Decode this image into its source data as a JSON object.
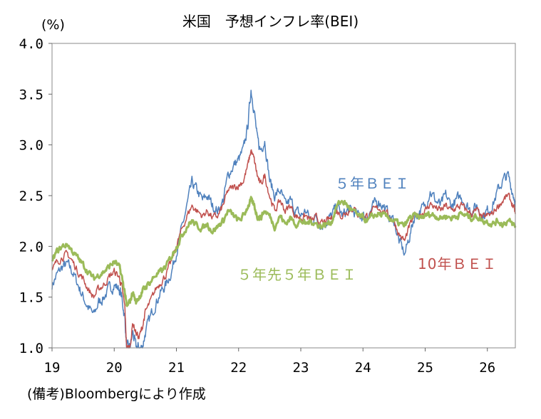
{
  "chart_data": {
    "type": "line",
    "title": "米国　予想インフレ率(BEI)",
    "ylabel": "(%)",
    "ylim": [
      1.0,
      4.0
    ],
    "y_ticks": [
      "1.0",
      "1.5",
      "2.0",
      "2.5",
      "3.0",
      "3.5",
      "4.0"
    ],
    "xlim": [
      2019.0,
      2026.45
    ],
    "x_ticks": [
      {
        "label": "19",
        "value": 2019
      },
      {
        "label": "20",
        "value": 2020
      },
      {
        "label": "21",
        "value": 2021
      },
      {
        "label": "22",
        "value": 2022
      },
      {
        "label": "23",
        "value": 2023
      },
      {
        "label": "24",
        "value": 2024
      },
      {
        "label": "25",
        "value": 2025
      },
      {
        "label": "26",
        "value": 2026
      }
    ],
    "grid": false,
    "source": "(備考)Bloombergにより作成",
    "series": [
      {
        "name": "５年ＢＥＩ",
        "color": "#4F81BD",
        "points": [
          [
            2019.0,
            1.62
          ],
          [
            2019.08,
            1.72
          ],
          [
            2019.17,
            1.8
          ],
          [
            2019.25,
            1.82
          ],
          [
            2019.33,
            1.75
          ],
          [
            2019.42,
            1.62
          ],
          [
            2019.5,
            1.5
          ],
          [
            2019.58,
            1.4
          ],
          [
            2019.67,
            1.32
          ],
          [
            2019.75,
            1.45
          ],
          [
            2019.83,
            1.5
          ],
          [
            2019.92,
            1.58
          ],
          [
            2020.0,
            1.62
          ],
          [
            2020.08,
            1.58
          ],
          [
            2020.12,
            1.5
          ],
          [
            2020.17,
            1.3
          ],
          [
            2020.2,
            1.0
          ],
          [
            2020.25,
            1.0
          ],
          [
            2020.3,
            1.15
          ],
          [
            2020.35,
            1.0
          ],
          [
            2020.4,
            1.0
          ],
          [
            2020.45,
            1.0
          ],
          [
            2020.5,
            1.15
          ],
          [
            2020.58,
            1.3
          ],
          [
            2020.67,
            1.45
          ],
          [
            2020.75,
            1.55
          ],
          [
            2020.83,
            1.62
          ],
          [
            2020.92,
            1.75
          ],
          [
            2021.0,
            1.95
          ],
          [
            2021.08,
            2.15
          ],
          [
            2021.17,
            2.4
          ],
          [
            2021.25,
            2.62
          ],
          [
            2021.33,
            2.55
          ],
          [
            2021.42,
            2.45
          ],
          [
            2021.5,
            2.5
          ],
          [
            2021.58,
            2.4
          ],
          [
            2021.67,
            2.35
          ],
          [
            2021.75,
            2.45
          ],
          [
            2021.83,
            2.7
          ],
          [
            2021.92,
            2.8
          ],
          [
            2022.0,
            2.85
          ],
          [
            2022.08,
            2.95
          ],
          [
            2022.15,
            3.2
          ],
          [
            2022.2,
            3.55
          ],
          [
            2022.25,
            3.35
          ],
          [
            2022.3,
            3.05
          ],
          [
            2022.35,
            2.95
          ],
          [
            2022.42,
            3.05
          ],
          [
            2022.5,
            2.65
          ],
          [
            2022.58,
            2.5
          ],
          [
            2022.67,
            2.55
          ],
          [
            2022.75,
            2.4
          ],
          [
            2022.83,
            2.45
          ],
          [
            2022.92,
            2.35
          ],
          [
            2023.0,
            2.3
          ],
          [
            2023.08,
            2.35
          ],
          [
            2023.17,
            2.25
          ],
          [
            2023.25,
            2.3
          ],
          [
            2023.33,
            2.2
          ],
          [
            2023.42,
            2.25
          ],
          [
            2023.5,
            2.3
          ],
          [
            2023.58,
            2.4
          ],
          [
            2023.67,
            2.3
          ],
          [
            2023.75,
            2.35
          ],
          [
            2023.83,
            2.35
          ],
          [
            2023.92,
            2.3
          ],
          [
            2024.0,
            2.3
          ],
          [
            2024.08,
            2.3
          ],
          [
            2024.17,
            2.4
          ],
          [
            2024.25,
            2.45
          ],
          [
            2024.33,
            2.4
          ],
          [
            2024.42,
            2.3
          ],
          [
            2024.5,
            2.25
          ],
          [
            2024.58,
            2.05
          ],
          [
            2024.67,
            1.92
          ],
          [
            2024.75,
            2.1
          ],
          [
            2024.83,
            2.3
          ],
          [
            2024.92,
            2.35
          ],
          [
            2025.0,
            2.4
          ],
          [
            2025.08,
            2.55
          ],
          [
            2025.17,
            2.45
          ],
          [
            2025.25,
            2.4
          ],
          [
            2025.33,
            2.5
          ],
          [
            2025.42,
            2.4
          ],
          [
            2025.5,
            2.45
          ],
          [
            2025.58,
            2.5
          ],
          [
            2025.67,
            2.4
          ],
          [
            2025.75,
            2.35
          ],
          [
            2025.83,
            2.4
          ],
          [
            2025.92,
            2.3
          ],
          [
            2026.0,
            2.35
          ],
          [
            2026.08,
            2.4
          ],
          [
            2026.17,
            2.55
          ],
          [
            2026.25,
            2.65
          ],
          [
            2026.33,
            2.7
          ],
          [
            2026.4,
            2.55
          ],
          [
            2026.45,
            2.45
          ]
        ]
      },
      {
        "name": "10年ＢＥＩ",
        "color": "#C0504D",
        "points": [
          [
            2019.0,
            1.75
          ],
          [
            2019.08,
            1.85
          ],
          [
            2019.17,
            1.9
          ],
          [
            2019.25,
            1.92
          ],
          [
            2019.33,
            1.85
          ],
          [
            2019.42,
            1.75
          ],
          [
            2019.5,
            1.68
          ],
          [
            2019.58,
            1.58
          ],
          [
            2019.67,
            1.5
          ],
          [
            2019.75,
            1.58
          ],
          [
            2019.83,
            1.62
          ],
          [
            2019.92,
            1.7
          ],
          [
            2020.0,
            1.75
          ],
          [
            2020.08,
            1.7
          ],
          [
            2020.12,
            1.6
          ],
          [
            2020.17,
            1.4
          ],
          [
            2020.2,
            1.0
          ],
          [
            2020.25,
            1.0
          ],
          [
            2020.3,
            1.25
          ],
          [
            2020.35,
            1.15
          ],
          [
            2020.4,
            1.1
          ],
          [
            2020.45,
            1.2
          ],
          [
            2020.5,
            1.35
          ],
          [
            2020.58,
            1.45
          ],
          [
            2020.67,
            1.58
          ],
          [
            2020.75,
            1.65
          ],
          [
            2020.83,
            1.72
          ],
          [
            2020.92,
            1.85
          ],
          [
            2021.0,
            2.0
          ],
          [
            2021.08,
            2.15
          ],
          [
            2021.17,
            2.3
          ],
          [
            2021.25,
            2.4
          ],
          [
            2021.33,
            2.35
          ],
          [
            2021.42,
            2.3
          ],
          [
            2021.5,
            2.35
          ],
          [
            2021.58,
            2.28
          ],
          [
            2021.67,
            2.3
          ],
          [
            2021.75,
            2.4
          ],
          [
            2021.83,
            2.55
          ],
          [
            2021.92,
            2.58
          ],
          [
            2022.0,
            2.6
          ],
          [
            2022.08,
            2.65
          ],
          [
            2022.15,
            2.8
          ],
          [
            2022.2,
            2.95
          ],
          [
            2022.25,
            2.85
          ],
          [
            2022.3,
            2.7
          ],
          [
            2022.35,
            2.6
          ],
          [
            2022.42,
            2.7
          ],
          [
            2022.5,
            2.5
          ],
          [
            2022.58,
            2.35
          ],
          [
            2022.67,
            2.45
          ],
          [
            2022.75,
            2.35
          ],
          [
            2022.83,
            2.4
          ],
          [
            2022.92,
            2.3
          ],
          [
            2023.0,
            2.28
          ],
          [
            2023.08,
            2.3
          ],
          [
            2023.17,
            2.25
          ],
          [
            2023.25,
            2.28
          ],
          [
            2023.33,
            2.22
          ],
          [
            2023.42,
            2.25
          ],
          [
            2023.5,
            2.28
          ],
          [
            2023.58,
            2.35
          ],
          [
            2023.67,
            2.3
          ],
          [
            2023.75,
            2.35
          ],
          [
            2023.83,
            2.38
          ],
          [
            2023.92,
            2.32
          ],
          [
            2024.0,
            2.3
          ],
          [
            2024.08,
            2.3
          ],
          [
            2024.17,
            2.35
          ],
          [
            2024.25,
            2.38
          ],
          [
            2024.33,
            2.35
          ],
          [
            2024.42,
            2.3
          ],
          [
            2024.5,
            2.25
          ],
          [
            2024.58,
            2.12
          ],
          [
            2024.67,
            2.05
          ],
          [
            2024.75,
            2.2
          ],
          [
            2024.83,
            2.3
          ],
          [
            2024.92,
            2.32
          ],
          [
            2025.0,
            2.35
          ],
          [
            2025.08,
            2.42
          ],
          [
            2025.17,
            2.38
          ],
          [
            2025.25,
            2.35
          ],
          [
            2025.33,
            2.4
          ],
          [
            2025.42,
            2.35
          ],
          [
            2025.5,
            2.38
          ],
          [
            2025.58,
            2.4
          ],
          [
            2025.67,
            2.35
          ],
          [
            2025.75,
            2.32
          ],
          [
            2025.83,
            2.35
          ],
          [
            2025.92,
            2.28
          ],
          [
            2026.0,
            2.3
          ],
          [
            2026.08,
            2.32
          ],
          [
            2026.17,
            2.4
          ],
          [
            2026.25,
            2.45
          ],
          [
            2026.33,
            2.5
          ],
          [
            2026.4,
            2.42
          ],
          [
            2026.45,
            2.32
          ]
        ]
      },
      {
        "name": "５年先５年ＢＥＩ",
        "color": "#9BBB59",
        "points": [
          [
            2019.0,
            1.85
          ],
          [
            2019.08,
            1.95
          ],
          [
            2019.17,
            2.0
          ],
          [
            2019.25,
            2.02
          ],
          [
            2019.33,
            1.95
          ],
          [
            2019.42,
            1.88
          ],
          [
            2019.5,
            1.82
          ],
          [
            2019.58,
            1.75
          ],
          [
            2019.67,
            1.68
          ],
          [
            2019.75,
            1.72
          ],
          [
            2019.83,
            1.75
          ],
          [
            2019.92,
            1.8
          ],
          [
            2020.0,
            1.85
          ],
          [
            2020.08,
            1.8
          ],
          [
            2020.12,
            1.7
          ],
          [
            2020.17,
            1.55
          ],
          [
            2020.2,
            1.4
          ],
          [
            2020.25,
            1.45
          ],
          [
            2020.3,
            1.55
          ],
          [
            2020.35,
            1.45
          ],
          [
            2020.4,
            1.5
          ],
          [
            2020.45,
            1.55
          ],
          [
            2020.5,
            1.6
          ],
          [
            2020.58,
            1.65
          ],
          [
            2020.67,
            1.72
          ],
          [
            2020.75,
            1.75
          ],
          [
            2020.83,
            1.8
          ],
          [
            2020.92,
            1.9
          ],
          [
            2021.0,
            2.0
          ],
          [
            2021.08,
            2.1
          ],
          [
            2021.17,
            2.2
          ],
          [
            2021.25,
            2.25
          ],
          [
            2021.33,
            2.2
          ],
          [
            2021.42,
            2.18
          ],
          [
            2021.5,
            2.22
          ],
          [
            2021.58,
            2.15
          ],
          [
            2021.67,
            2.2
          ],
          [
            2021.75,
            2.25
          ],
          [
            2021.83,
            2.35
          ],
          [
            2021.92,
            2.3
          ],
          [
            2022.0,
            2.25
          ],
          [
            2022.08,
            2.3
          ],
          [
            2022.15,
            2.4
          ],
          [
            2022.2,
            2.45
          ],
          [
            2022.25,
            2.4
          ],
          [
            2022.3,
            2.3
          ],
          [
            2022.35,
            2.28
          ],
          [
            2022.42,
            2.35
          ],
          [
            2022.5,
            2.3
          ],
          [
            2022.58,
            2.2
          ],
          [
            2022.67,
            2.3
          ],
          [
            2022.75,
            2.22
          ],
          [
            2022.83,
            2.28
          ],
          [
            2022.92,
            2.22
          ],
          [
            2023.0,
            2.25
          ],
          [
            2023.08,
            2.22
          ],
          [
            2023.17,
            2.25
          ],
          [
            2023.25,
            2.22
          ],
          [
            2023.33,
            2.2
          ],
          [
            2023.42,
            2.22
          ],
          [
            2023.5,
            2.25
          ],
          [
            2023.58,
            2.4
          ],
          [
            2023.67,
            2.45
          ],
          [
            2023.75,
            2.4
          ],
          [
            2023.83,
            2.35
          ],
          [
            2023.92,
            2.3
          ],
          [
            2024.0,
            2.28
          ],
          [
            2024.08,
            2.25
          ],
          [
            2024.17,
            2.3
          ],
          [
            2024.25,
            2.32
          ],
          [
            2024.33,
            2.3
          ],
          [
            2024.42,
            2.28
          ],
          [
            2024.5,
            2.25
          ],
          [
            2024.58,
            2.22
          ],
          [
            2024.67,
            2.2
          ],
          [
            2024.75,
            2.28
          ],
          [
            2024.83,
            2.3
          ],
          [
            2024.92,
            2.28
          ],
          [
            2025.0,
            2.3
          ],
          [
            2025.08,
            2.32
          ],
          [
            2025.17,
            2.3
          ],
          [
            2025.25,
            2.28
          ],
          [
            2025.33,
            2.3
          ],
          [
            2025.42,
            2.28
          ],
          [
            2025.5,
            2.3
          ],
          [
            2025.58,
            2.32
          ],
          [
            2025.67,
            2.3
          ],
          [
            2025.75,
            2.28
          ],
          [
            2025.83,
            2.3
          ],
          [
            2025.92,
            2.25
          ],
          [
            2026.0,
            2.25
          ],
          [
            2026.08,
            2.22
          ],
          [
            2026.17,
            2.25
          ],
          [
            2026.25,
            2.22
          ],
          [
            2026.33,
            2.25
          ],
          [
            2026.4,
            2.22
          ],
          [
            2026.45,
            2.2
          ]
        ]
      }
    ]
  }
}
